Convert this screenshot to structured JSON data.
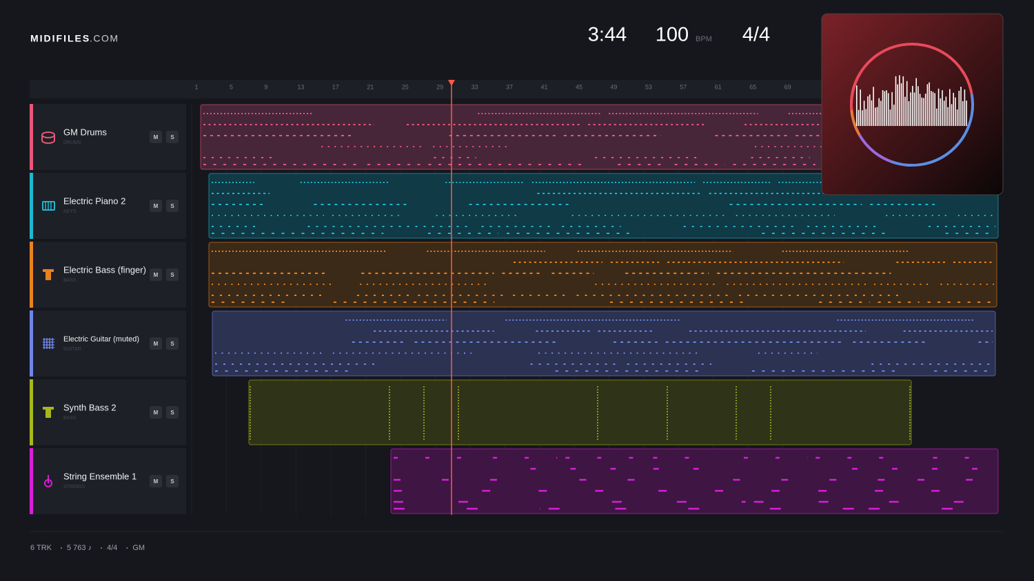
{
  "brand": {
    "name": "MIDIFILES",
    "suffix": ".COM"
  },
  "transport": {
    "time": "3:44",
    "tempo": "100",
    "tempo_unit": "BPM",
    "meter": "4/4"
  },
  "ruler": [
    1,
    5,
    9,
    13,
    17,
    21,
    25,
    29,
    33,
    37,
    41,
    45,
    49,
    53,
    57,
    61,
    65,
    69
  ],
  "tracks": [
    {
      "name": "GM Drums",
      "category": "DRUMS",
      "mute": "M",
      "solo": "S"
    },
    {
      "name": "Electric Piano 2",
      "category": "KEYS",
      "mute": "M",
      "solo": "S"
    },
    {
      "name": "Electric Bass (finger)",
      "category": "BASS",
      "mute": "M",
      "solo": "S"
    },
    {
      "name": "Electric Guitar (muted)",
      "category": "GUITAR",
      "mute": "M",
      "solo": "S"
    },
    {
      "name": "Synth Bass 2",
      "category": "BASS",
      "mute": "M",
      "solo": "S"
    },
    {
      "name": "String Ensemble 1",
      "category": "STRINGS",
      "mute": "M",
      "solo": "S"
    }
  ],
  "footer": [
    "6 TRK",
    "5 763 ♪",
    "4/4",
    "GM"
  ]
}
